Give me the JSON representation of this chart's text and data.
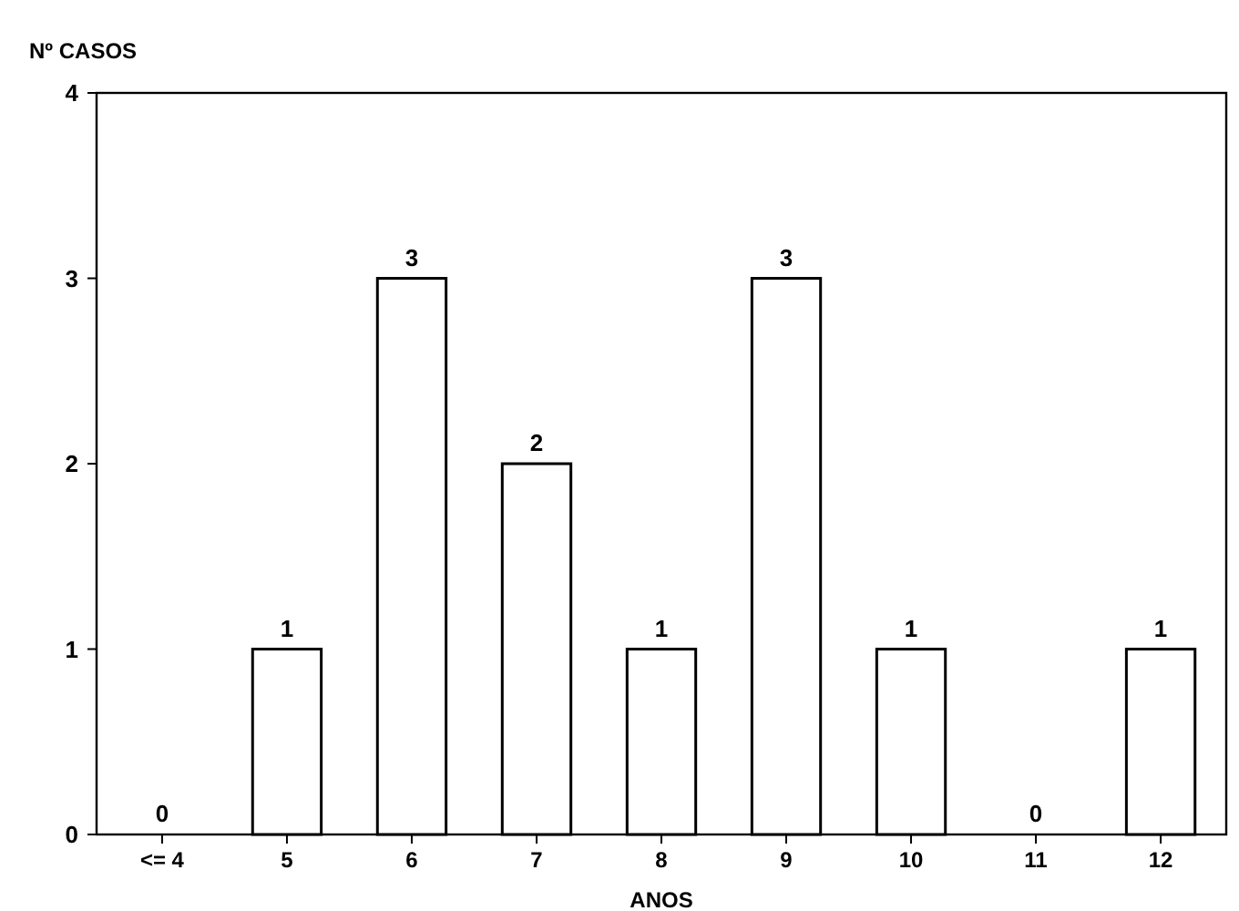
{
  "chart_data": {
    "type": "bar",
    "xlabel": "ANOS",
    "ylabel": "Nº CASOS",
    "categories": [
      "<= 4",
      "5",
      "6",
      "7",
      "8",
      "9",
      "10",
      "11",
      "12"
    ],
    "values": [
      0,
      1,
      3,
      2,
      1,
      3,
      1,
      0,
      1
    ],
    "color": "#ffffff",
    "ylim": [
      0,
      4
    ],
    "yticks": [
      0,
      1,
      2,
      3,
      4
    ],
    "grid": false,
    "data_labels": true
  }
}
